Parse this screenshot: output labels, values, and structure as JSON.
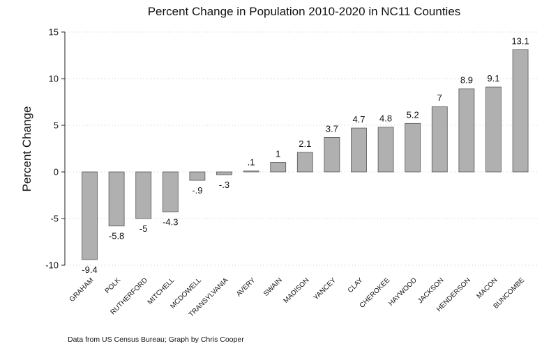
{
  "chart_data": {
    "type": "bar",
    "title": "Percent Change in Population 2010-2020 in NC11 Counties",
    "xlabel": "",
    "ylabel": "Percent Change",
    "ylim": [
      -10,
      15
    ],
    "yticks": [
      -10,
      -5,
      0,
      5,
      10,
      15
    ],
    "ytick_labels": [
      "-10",
      "-5",
      "0",
      "5",
      "10",
      "15"
    ],
    "grid": true,
    "categories": [
      "GRAHAM",
      "POLK",
      "RUTHERFORD",
      "MITCHELL",
      "MCDOWELL",
      "TRANSYLVANIA",
      "AVERY",
      "SWAIN",
      "MADISON",
      "YANCEY",
      "CLAY",
      "CHEROKEE",
      "HAYWOOD",
      "JACKSON",
      "HENDERSON",
      "MACON",
      "BUNCOMBE"
    ],
    "values": [
      -9.4,
      -5.8,
      -5,
      -4.3,
      -0.9,
      -0.3,
      0.1,
      1,
      2.1,
      3.7,
      4.7,
      4.8,
      5.2,
      7,
      8.9,
      9.1,
      13.1
    ],
    "value_labels": [
      "-9.4",
      "-5.8",
      "-5",
      "-4.3",
      "-.9",
      "-.3",
      ".1",
      "1",
      "2.1",
      "3.7",
      "4.7",
      "4.8",
      "5.2",
      "7",
      "8.9",
      "9.1",
      "13.1"
    ],
    "bar_color": "#b0b0b0",
    "bar_edge_color": "#555555",
    "note": "Data from US Census Bureau; Graph by Chris Cooper"
  }
}
